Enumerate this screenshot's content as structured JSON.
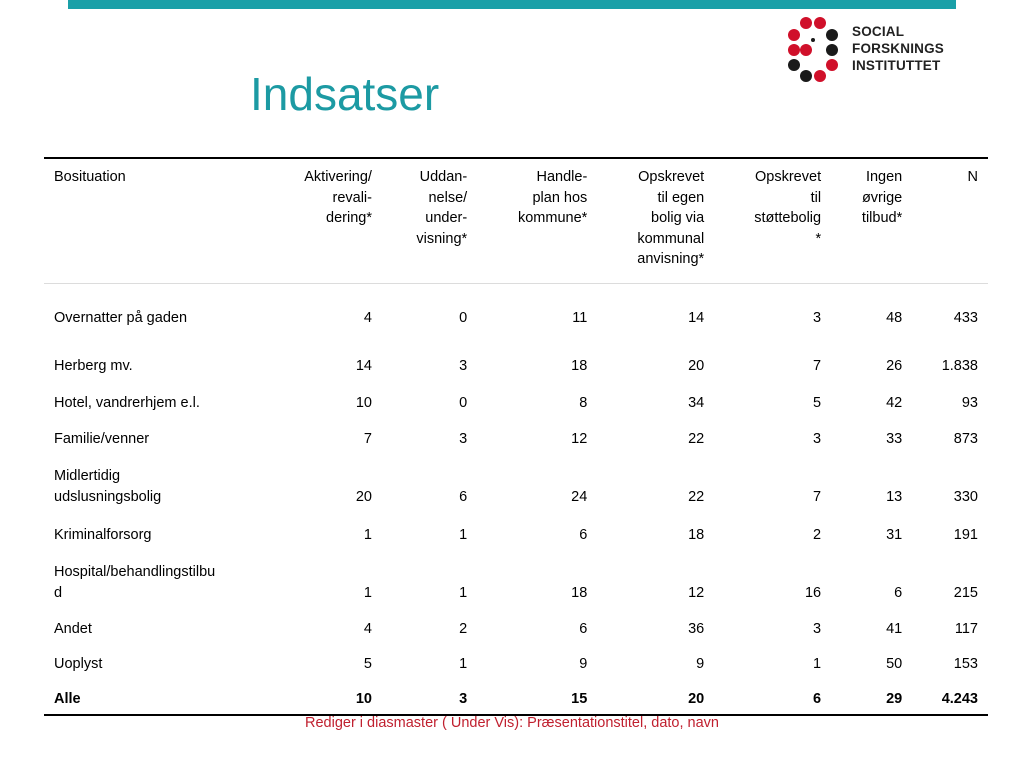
{
  "slide": {
    "title": "Indsatser",
    "footer": "Rediger i diasmaster ( Under Vis): Præsentationstitel, dato, navn"
  },
  "logo": {
    "line1": "SOCIAL",
    "line2": "FORSKNINGS",
    "line3": "INSTITUTTET",
    "colors": {
      "red": "#d0102a",
      "black": "#1a1a1a"
    }
  },
  "colors": {
    "accent": "#1c9aa3",
    "footer": "#c0202f"
  },
  "table": {
    "headers": [
      "Bosituation",
      "Aktivering/\nrevali-\ndering*",
      "Uddan-\nnelse/\nunder-\nvisning*",
      "Handle-\nplan hos\nkommune*",
      "Opskrevet\ntil egen\nbolig via\nkommunal\nanvisning*",
      "Opskrevet\ntil\nstøttebolig\n*",
      "Ingen\nøvrige\ntilbud*",
      "N"
    ],
    "rows": [
      [
        "Overnatter på gaden",
        "4",
        "0",
        "11",
        "14",
        "3",
        "48",
        "433"
      ],
      [
        "Herberg mv.",
        "14",
        "3",
        "18",
        "20",
        "7",
        "26",
        "1.838"
      ],
      [
        "Hotel, vandrerhjem e.l.",
        "10",
        "0",
        "8",
        "34",
        "5",
        "42",
        "93"
      ],
      [
        "Familie/venner",
        "7",
        "3",
        "12",
        "22",
        "3",
        "33",
        "873"
      ],
      [
        "Midlertidig\nudslusningsbolig",
        "20",
        "6",
        "24",
        "22",
        "7",
        "13",
        "330"
      ],
      [
        "Kriminalforsorg",
        "1",
        "1",
        "6",
        "18",
        "2",
        "31",
        "191"
      ],
      [
        "Hospital/behandlingstilbu\nd",
        "1",
        "1",
        "18",
        "12",
        "16",
        "6",
        "215"
      ],
      [
        "Andet",
        "4",
        "2",
        "6",
        "36",
        "3",
        "41",
        "117"
      ],
      [
        "Uoplyst",
        "5",
        "1",
        "9",
        "9",
        "1",
        "50",
        "153"
      ],
      [
        "Alle",
        "10",
        "3",
        "15",
        "20",
        "6",
        "29",
        "4.243"
      ]
    ]
  }
}
